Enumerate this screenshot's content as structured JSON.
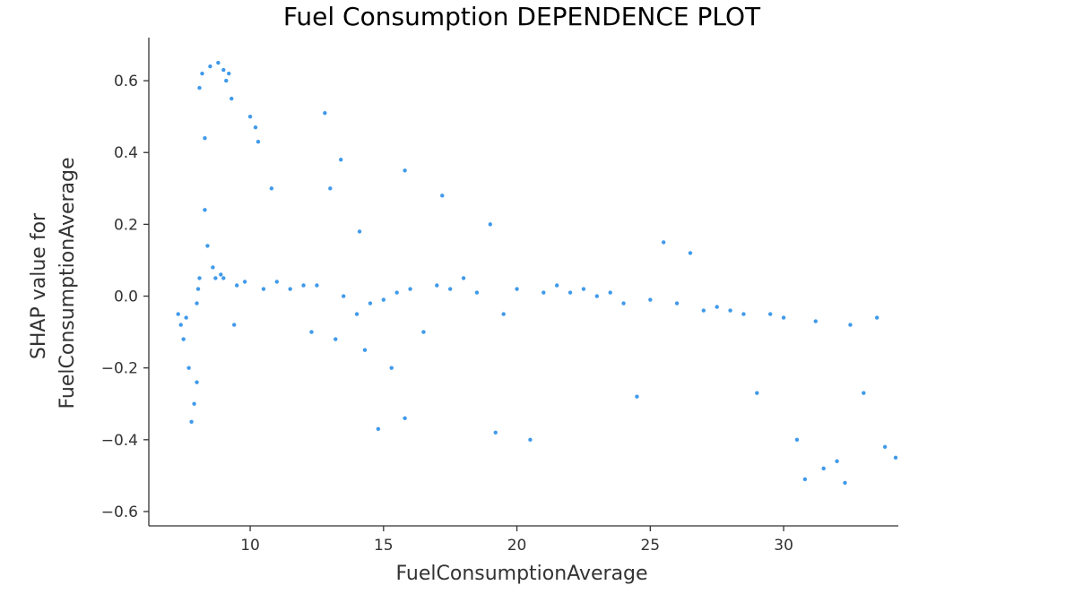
{
  "chart_data": {
    "type": "scatter",
    "title": "Fuel Consumption DEPENDENCE PLOT",
    "xlabel": "FuelConsumptionAverage",
    "ylabel_lines": [
      "SHAP value for",
      "FuelConsumptionAverage"
    ],
    "xlim": [
      6.2,
      34.3
    ],
    "ylim": [
      -0.64,
      0.72
    ],
    "xticks": [
      10,
      15,
      20,
      25,
      30
    ],
    "xtick_labels": [
      "10",
      "15",
      "20",
      "25",
      "30"
    ],
    "yticks": [
      -0.6,
      -0.4,
      -0.2,
      0.0,
      0.2,
      0.4,
      0.6
    ],
    "ytick_labels": [
      "−0.6",
      "−0.4",
      "−0.2",
      "0.0",
      "0.2",
      "0.4",
      "0.6"
    ],
    "point_color": "#1e88e5",
    "grid": false,
    "legend": "none",
    "series": [
      {
        "points": [
          [
            7.3,
            -0.05
          ],
          [
            7.4,
            -0.08
          ],
          [
            7.5,
            -0.12
          ],
          [
            7.6,
            -0.06
          ],
          [
            7.7,
            -0.2
          ],
          [
            7.8,
            -0.35
          ],
          [
            7.9,
            -0.3
          ],
          [
            8.0,
            -0.24
          ],
          [
            8.0,
            -0.02
          ],
          [
            8.05,
            0.02
          ],
          [
            8.1,
            0.05
          ],
          [
            8.1,
            0.58
          ],
          [
            8.2,
            0.62
          ],
          [
            8.3,
            0.44
          ],
          [
            8.3,
            0.24
          ],
          [
            8.4,
            0.14
          ],
          [
            8.5,
            0.64
          ],
          [
            8.6,
            0.08
          ],
          [
            8.7,
            0.05
          ],
          [
            8.8,
            0.65
          ],
          [
            8.9,
            0.06
          ],
          [
            9.0,
            0.05
          ],
          [
            9.0,
            0.63
          ],
          [
            9.1,
            0.6
          ],
          [
            9.2,
            0.62
          ],
          [
            9.3,
            0.55
          ],
          [
            9.4,
            -0.08
          ],
          [
            9.5,
            0.03
          ],
          [
            9.8,
            0.04
          ],
          [
            10.0,
            0.5
          ],
          [
            10.2,
            0.47
          ],
          [
            10.3,
            0.43
          ],
          [
            10.5,
            0.02
          ],
          [
            10.8,
            0.3
          ],
          [
            11.0,
            0.04
          ],
          [
            11.5,
            0.02
          ],
          [
            12.0,
            0.03
          ],
          [
            12.3,
            -0.1
          ],
          [
            12.5,
            0.03
          ],
          [
            12.8,
            0.51
          ],
          [
            13.0,
            0.3
          ],
          [
            13.2,
            -0.12
          ],
          [
            13.4,
            0.38
          ],
          [
            13.5,
            0.0
          ],
          [
            14.0,
            -0.05
          ],
          [
            14.1,
            0.18
          ],
          [
            14.3,
            -0.15
          ],
          [
            14.5,
            -0.02
          ],
          [
            14.8,
            -0.37
          ],
          [
            15.0,
            -0.01
          ],
          [
            15.3,
            -0.2
          ],
          [
            15.5,
            0.01
          ],
          [
            15.8,
            0.35
          ],
          [
            15.8,
            -0.34
          ],
          [
            16.0,
            0.02
          ],
          [
            16.5,
            -0.1
          ],
          [
            17.0,
            0.03
          ],
          [
            17.2,
            0.28
          ],
          [
            17.5,
            0.02
          ],
          [
            18.0,
            0.05
          ],
          [
            18.5,
            0.01
          ],
          [
            19.0,
            0.2
          ],
          [
            19.2,
            -0.38
          ],
          [
            19.5,
            -0.05
          ],
          [
            20.0,
            0.02
          ],
          [
            20.5,
            -0.4
          ],
          [
            21.0,
            0.01
          ],
          [
            21.5,
            0.03
          ],
          [
            22.0,
            0.01
          ],
          [
            22.5,
            0.02
          ],
          [
            23.0,
            0.0
          ],
          [
            23.5,
            0.01
          ],
          [
            24.0,
            -0.02
          ],
          [
            24.5,
            -0.28
          ],
          [
            25.0,
            -0.01
          ],
          [
            25.5,
            0.15
          ],
          [
            26.0,
            -0.02
          ],
          [
            26.5,
            0.12
          ],
          [
            27.0,
            -0.04
          ],
          [
            27.5,
            -0.03
          ],
          [
            28.0,
            -0.04
          ],
          [
            28.5,
            -0.05
          ],
          [
            29.0,
            -0.27
          ],
          [
            29.5,
            -0.05
          ],
          [
            30.0,
            -0.06
          ],
          [
            30.5,
            -0.4
          ],
          [
            30.8,
            -0.51
          ],
          [
            31.2,
            -0.07
          ],
          [
            31.5,
            -0.48
          ],
          [
            32.0,
            -0.46
          ],
          [
            32.3,
            -0.52
          ],
          [
            32.5,
            -0.08
          ],
          [
            33.0,
            -0.27
          ],
          [
            33.5,
            -0.06
          ],
          [
            33.8,
            -0.42
          ],
          [
            34.2,
            -0.45
          ]
        ]
      }
    ]
  }
}
